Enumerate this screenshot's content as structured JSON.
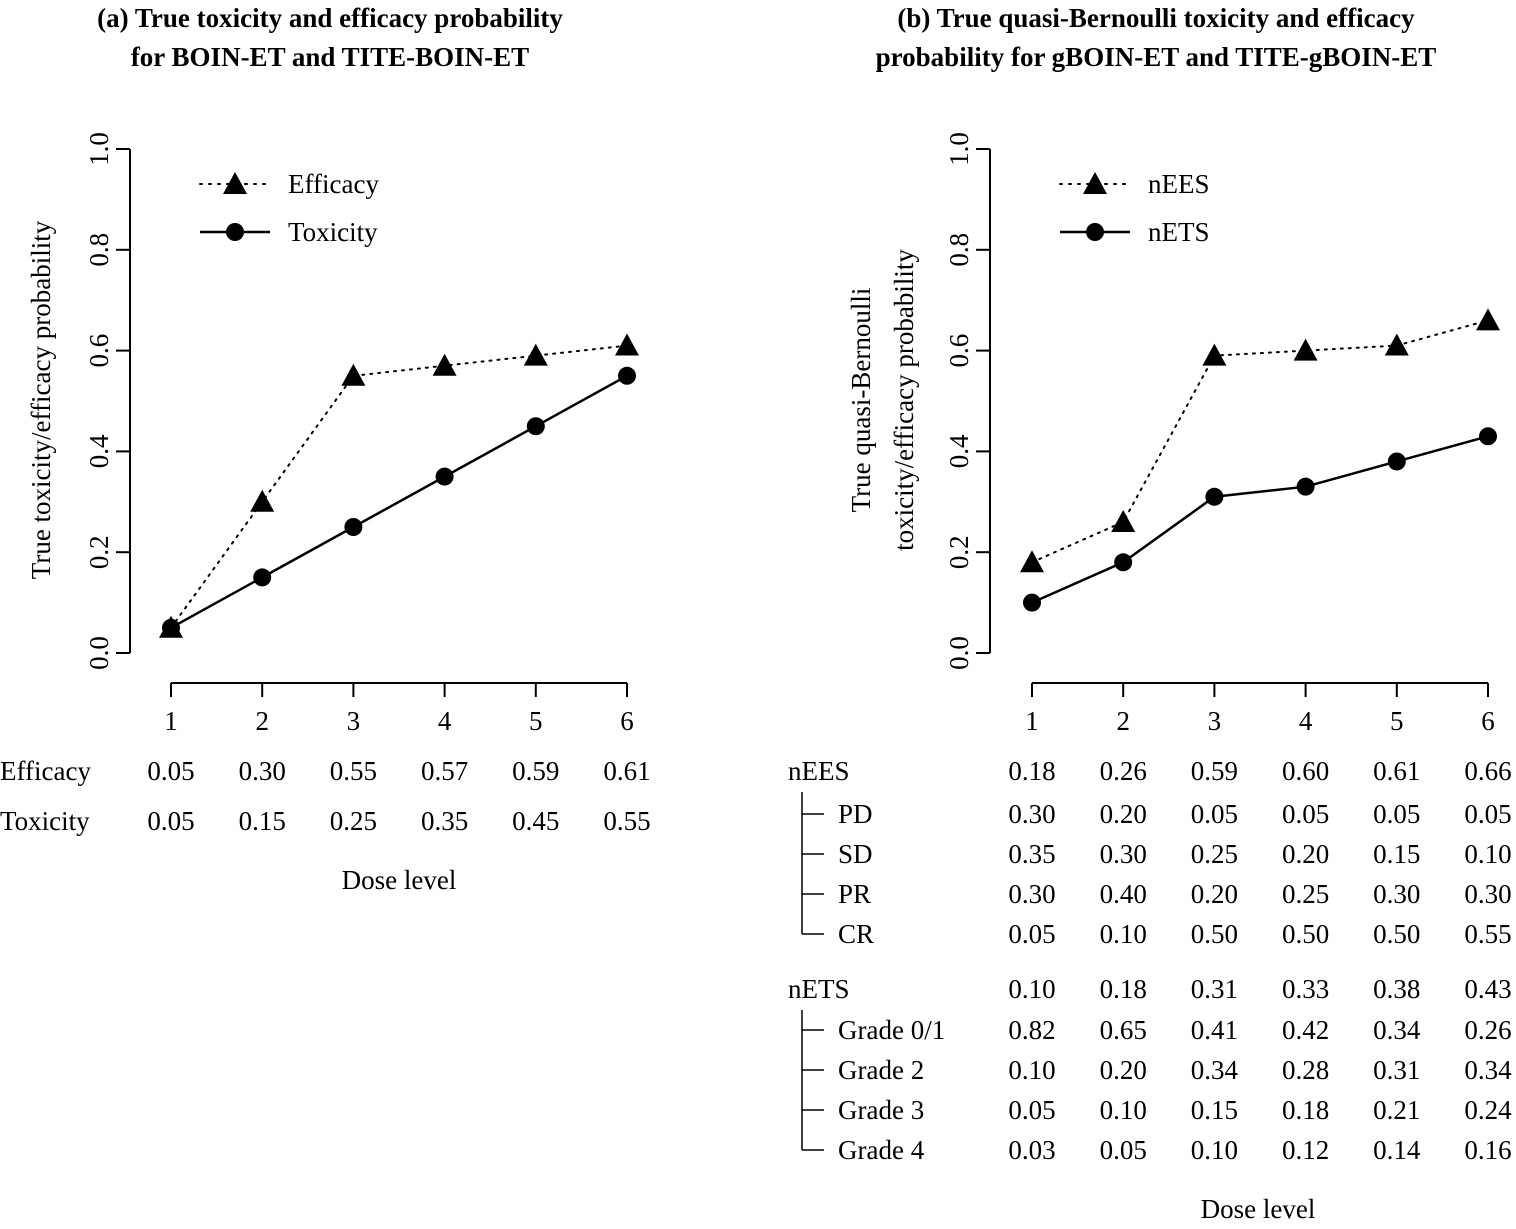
{
  "chart_data": [
    {
      "type": "line",
      "title_line1": "(a) True toxicity and efficacy probability",
      "title_line2": "for BOIN-ET and TITE-BOIN-ET",
      "ylabel": "True toxicity/efficacy probability",
      "xlabel": "Dose level",
      "ylim": [
        0,
        1
      ],
      "y_ticks": [
        "0.0",
        "0.2",
        "0.4",
        "0.6",
        "0.8",
        "1.0"
      ],
      "x": [
        1,
        2,
        3,
        4,
        5,
        6
      ],
      "x_ticks": [
        "1",
        "2",
        "3",
        "4",
        "5",
        "6"
      ],
      "legend_position": "top-left",
      "series": [
        {
          "name": "Efficacy",
          "marker": "triangle",
          "line": "dotted",
          "values": [
            0.05,
            0.3,
            0.55,
            0.57,
            0.59,
            0.61
          ]
        },
        {
          "name": "Toxicity",
          "marker": "circle",
          "line": "solid",
          "values": [
            0.05,
            0.15,
            0.25,
            0.35,
            0.45,
            0.55
          ]
        }
      ],
      "table": [
        {
          "label": "Efficacy",
          "values": [
            "0.05",
            "0.30",
            "0.55",
            "0.57",
            "0.59",
            "0.61"
          ]
        },
        {
          "label": "Toxicity",
          "values": [
            "0.05",
            "0.15",
            "0.25",
            "0.35",
            "0.45",
            "0.55"
          ]
        }
      ]
    },
    {
      "type": "line",
      "title_line1": "(b) True quasi-Bernoulli toxicity and efficacy",
      "title_line2": "probability for gBOIN-ET and TITE-gBOIN-ET",
      "ylabel_line1": "True quasi-Bernoulli",
      "ylabel_line2": "toxicity/efficacy probability",
      "xlabel": "Dose level",
      "ylim": [
        0,
        1
      ],
      "y_ticks": [
        "0.0",
        "0.2",
        "0.4",
        "0.6",
        "0.8",
        "1.0"
      ],
      "x": [
        1,
        2,
        3,
        4,
        5,
        6
      ],
      "x_ticks": [
        "1",
        "2",
        "3",
        "4",
        "5",
        "6"
      ],
      "legend_position": "top-left",
      "series": [
        {
          "name": "nEES",
          "marker": "triangle",
          "line": "dotted",
          "values": [
            0.18,
            0.26,
            0.59,
            0.6,
            0.61,
            0.66
          ]
        },
        {
          "name": "nETS",
          "marker": "circle",
          "line": "solid",
          "values": [
            0.1,
            0.18,
            0.31,
            0.33,
            0.38,
            0.43
          ]
        }
      ],
      "table_groups": [
        {
          "label": "nEES",
          "values": [
            "0.18",
            "0.26",
            "0.59",
            "0.60",
            "0.61",
            "0.66"
          ],
          "rows": [
            {
              "label": "PD",
              "values": [
                "0.30",
                "0.20",
                "0.05",
                "0.05",
                "0.05",
                "0.05"
              ]
            },
            {
              "label": "SD",
              "values": [
                "0.35",
                "0.30",
                "0.25",
                "0.20",
                "0.15",
                "0.10"
              ]
            },
            {
              "label": "PR",
              "values": [
                "0.30",
                "0.40",
                "0.20",
                "0.25",
                "0.30",
                "0.30"
              ]
            },
            {
              "label": "CR",
              "values": [
                "0.05",
                "0.10",
                "0.50",
                "0.50",
                "0.50",
                "0.55"
              ]
            }
          ]
        },
        {
          "label": "nETS",
          "values": [
            "0.10",
            "0.18",
            "0.31",
            "0.33",
            "0.38",
            "0.43"
          ],
          "rows": [
            {
              "label": "Grade 0/1",
              "values": [
                "0.82",
                "0.65",
                "0.41",
                "0.42",
                "0.34",
                "0.26"
              ]
            },
            {
              "label": "Grade 2",
              "values": [
                "0.10",
                "0.20",
                "0.34",
                "0.28",
                "0.31",
                "0.34"
              ]
            },
            {
              "label": "Grade 3",
              "values": [
                "0.05",
                "0.10",
                "0.15",
                "0.18",
                "0.21",
                "0.24"
              ]
            },
            {
              "label": "Grade 4",
              "values": [
                "0.03",
                "0.05",
                "0.10",
                "0.12",
                "0.14",
                "0.16"
              ]
            }
          ]
        }
      ]
    }
  ]
}
